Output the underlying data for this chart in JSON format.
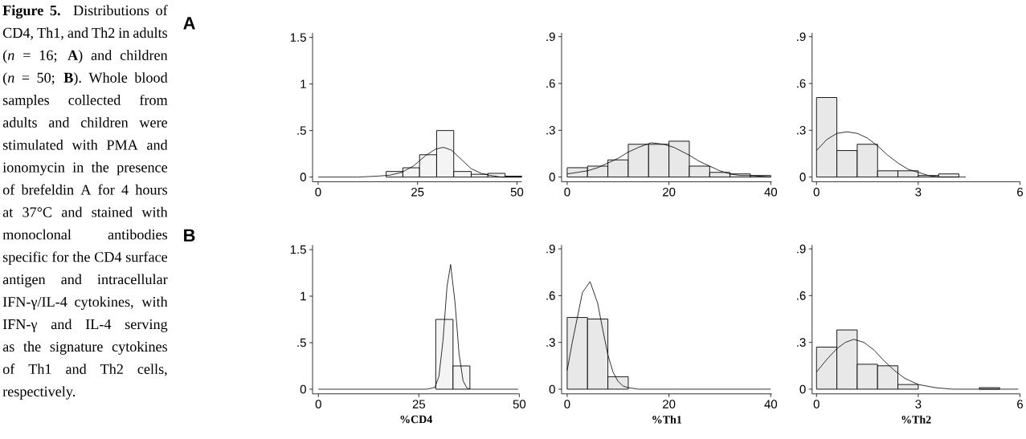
{
  "chart_data": [
    {
      "type": "histogram",
      "title": "A",
      "annotations": [
        "**Figure 5.** Distributions of CD4, Th1, and Th2 in adults (*n* = 16; **A**) and children (*n* = 50; **B**). Whole blood samples collected from adults and children were stimulated with PMA and ionomycin in the presence of brefeldin A for 4 hours at 37°C and stained with monoclonal antibodies specific for the CD4 surface antigen and intracellular IFN-γ/IL-4 cytokines, with IFN-γ and IL-4 serving as the signature cytokines of Th1 and Th2 cells, respectively."
      ],
      "xlim": [
        -1.4,
        51.2
      ],
      "ylim": [
        -0.05,
        1.55
      ],
      "xticks": [
        0,
        25,
        50
      ],
      "yticks": [
        0,
        {
          "value": 0.5,
          "label": ".5"
        },
        1,
        1.5
      ],
      "series": [
        {
          "type": "histogram",
          "color": "#f4f4f4",
          "bins": [
            17.1,
            21.3,
            25.5,
            29.8,
            34.1,
            38.5,
            42.7,
            47.0,
            51.2
          ],
          "values": [
            0.06,
            0.1,
            0.24,
            0.5,
            0.06,
            0.03,
            0.04,
            0.01
          ]
        },
        {
          "type": "line",
          "color": "#000000",
          "x": [
            0,
            10,
            15,
            18,
            21,
            24,
            27,
            29.5,
            31.5,
            33.5,
            36,
            38.5,
            41,
            43,
            46,
            51
          ],
          "values": [
            0,
            0,
            0.01,
            0.02,
            0.05,
            0.12,
            0.23,
            0.3,
            0.32,
            0.29,
            0.19,
            0.09,
            0.04,
            0.02,
            0,
            0
          ]
        }
      ]
    },
    {
      "type": "histogram",
      "xlim": [
        -1.1,
        40.2
      ],
      "ylim": [
        -0.03,
        0.925
      ],
      "xticks": [
        0,
        20,
        40
      ],
      "yticks": [
        0,
        {
          "value": 0.3,
          "label": ".3"
        },
        {
          "value": 0.6,
          "label": ".6"
        },
        {
          "value": 0.9,
          "label": ".9"
        }
      ],
      "series": [
        {
          "type": "histogram",
          "color": "#e8e8e8",
          "bins": [
            0,
            4,
            8,
            12,
            16,
            20,
            24,
            28,
            32,
            36,
            40
          ],
          "values": [
            0.06,
            0.07,
            0.11,
            0.21,
            0.21,
            0.23,
            0.07,
            0.03,
            0.02,
            0.01
          ]
        },
        {
          "type": "line",
          "color": "#000000",
          "x": [
            0,
            2,
            4,
            6,
            8,
            10,
            12,
            14,
            16.5,
            19,
            21,
            24,
            26,
            28,
            30,
            32,
            34,
            36,
            40
          ],
          "values": [
            0.02,
            0.03,
            0.04,
            0.06,
            0.09,
            0.12,
            0.16,
            0.19,
            0.22,
            0.21,
            0.19,
            0.14,
            0.1,
            0.07,
            0.04,
            0.02,
            0.01,
            0.01,
            0
          ]
        }
      ]
    },
    {
      "type": "histogram",
      "xlim": [
        -0.13,
        6
      ],
      "ylim": [
        -0.03,
        0.925
      ],
      "xticks": [
        0,
        3,
        6
      ],
      "yticks": [
        0,
        {
          "value": 0.3,
          "label": ".3"
        },
        {
          "value": 0.6,
          "label": ".6"
        },
        {
          "value": 0.9,
          "label": ".9"
        }
      ],
      "series": [
        {
          "type": "histogram",
          "color": "#e8e8e8",
          "bins": [
            0,
            0.6,
            1.2,
            1.8,
            2.4,
            3.0,
            3.6,
            4.2
          ],
          "values": [
            0.51,
            0.17,
            0.21,
            0.04,
            0.04,
            0.01,
            0.02
          ]
        },
        {
          "type": "line",
          "color": "#000000",
          "x": [
            0,
            0.3,
            0.6,
            0.9,
            1.2,
            1.5,
            1.8,
            2.1,
            2.4,
            2.7,
            3,
            3.3,
            3.6,
            4,
            4.4
          ],
          "values": [
            0.17,
            0.24,
            0.28,
            0.29,
            0.28,
            0.25,
            0.2,
            0.14,
            0.09,
            0.05,
            0.03,
            0.01,
            0,
            0,
            0
          ]
        }
      ]
    },
    {
      "type": "histogram",
      "title": "B",
      "xlabel": "%CD4",
      "xlim": [
        -1.45,
        50
      ],
      "ylim": [
        -0.05,
        1.55
      ],
      "xticks": [
        0,
        25,
        50
      ],
      "yticks": [
        0,
        {
          "value": 0.5,
          "label": ".5"
        },
        1,
        1.5
      ],
      "series": [
        {
          "type": "histogram",
          "color": "#f4f4f4",
          "bins": [
            29.2,
            33.5,
            37.7
          ],
          "values": [
            0.75,
            0.25
          ]
        },
        {
          "type": "line",
          "color": "#000000",
          "x": [
            0,
            27,
            29,
            30,
            31,
            32,
            32.9,
            34,
            35,
            36,
            37,
            38,
            49.7
          ],
          "values": [
            0,
            0,
            0.02,
            0.14,
            0.52,
            1.1,
            1.34,
            0.93,
            0.38,
            0.09,
            0.01,
            0,
            0
          ]
        }
      ]
    },
    {
      "type": "histogram",
      "xlabel": "%Th1",
      "xlim": [
        -1.1,
        40.2
      ],
      "ylim": [
        -0.03,
        0.925
      ],
      "xticks": [
        0,
        20,
        40
      ],
      "yticks": [
        0,
        {
          "value": 0.3,
          "label": ".3"
        },
        {
          "value": 0.6,
          "label": ".6"
        },
        {
          "value": 0.9,
          "label": ".9"
        }
      ],
      "series": [
        {
          "type": "histogram",
          "color": "#e8e8e8",
          "bins": [
            0,
            4,
            8,
            12
          ],
          "values": [
            0.46,
            0.45,
            0.08
          ]
        },
        {
          "type": "line",
          "color": "#000000",
          "x": [
            0,
            1,
            2,
            3,
            4.5,
            6,
            7,
            8,
            9,
            10,
            11,
            12,
            14,
            20,
            30,
            40
          ],
          "values": [
            0.12,
            0.3,
            0.46,
            0.62,
            0.69,
            0.55,
            0.38,
            0.22,
            0.11,
            0.05,
            0.02,
            0.01,
            0,
            0,
            0,
            0
          ]
        }
      ]
    },
    {
      "type": "histogram",
      "xlabel": "%Th2",
      "xlim": [
        -0.13,
        6
      ],
      "ylim": [
        -0.03,
        0.925
      ],
      "xticks": [
        0,
        3,
        6
      ],
      "yticks": [
        0,
        {
          "value": 0.3,
          "label": ".3"
        },
        {
          "value": 0.6,
          "label": ".6"
        },
        {
          "value": 0.9,
          "label": ".9"
        }
      ],
      "series": [
        {
          "type": "histogram",
          "color": "#e8e8e8",
          "bins": [
            0,
            0.6,
            1.2,
            1.8,
            2.4,
            3.0,
            3.6,
            4.2,
            4.8,
            5.4
          ],
          "values": [
            0.27,
            0.38,
            0.16,
            0.15,
            0.03,
            null,
            null,
            null,
            0.01
          ]
        },
        {
          "type": "line",
          "color": "#000000",
          "x": [
            0,
            0.3,
            0.6,
            0.85,
            1.1,
            1.4,
            1.7,
            2,
            2.3,
            2.6,
            3,
            3.5,
            4,
            5,
            5.95
          ],
          "values": [
            0.11,
            0.19,
            0.26,
            0.3,
            0.32,
            0.3,
            0.25,
            0.18,
            0.12,
            0.07,
            0.03,
            0.01,
            0,
            0,
            0
          ]
        }
      ]
    }
  ]
}
